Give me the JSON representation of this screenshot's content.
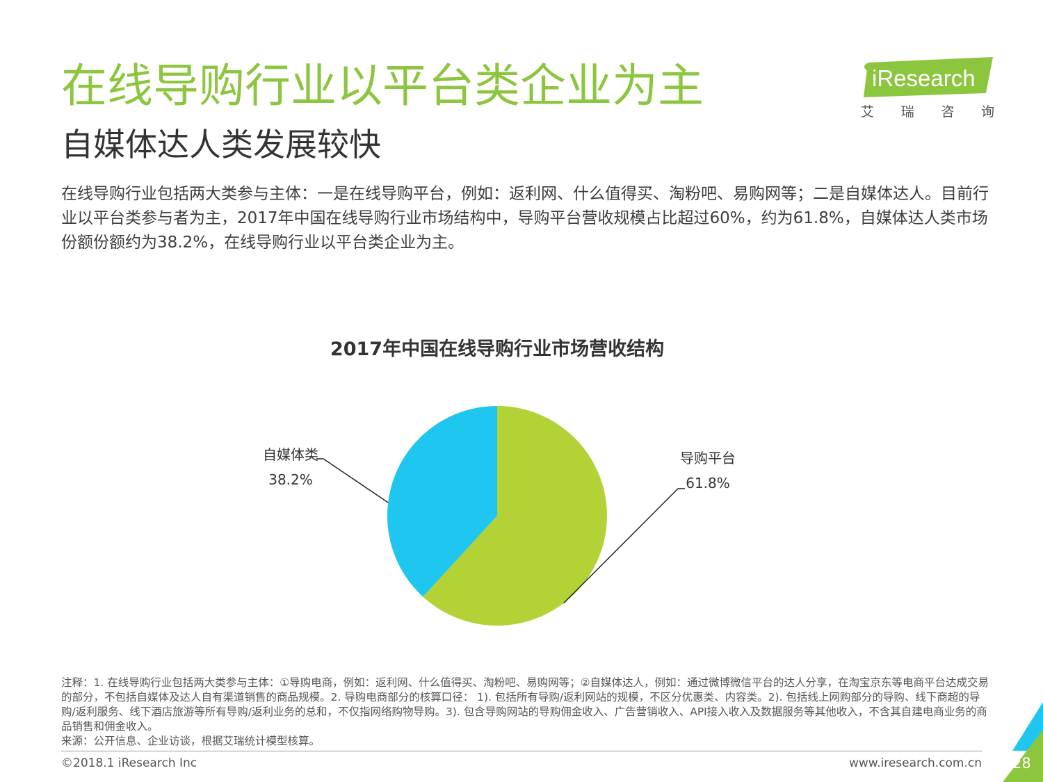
{
  "header": {
    "title": "在线导购行业以平台类企业为主",
    "subtitle": "自媒体达人类发展较快",
    "intro": "在线导购行业包括两大类参与主体：一是在线导购平台，例如：返利网、什么值得买、淘粉吧、易购网等；二是自媒体达人。目前行业以平台类参与者为主，2017年中国在线导购行业市场结构中，导购平台营收规模占比超过60%，约为61.8%，自媒体达人类市场份额份额约为38.2%，在线导购行业以平台类企业为主。"
  },
  "logo": {
    "brand": "iResearch",
    "cn_chars": [
      "艾",
      "瑞",
      "咨",
      "询"
    ]
  },
  "chart_data": {
    "type": "pie",
    "title": "2017年中国在线导购行业市场营收结构",
    "slices": [
      {
        "label": "导购平台",
        "value": 61.8,
        "value_label": "61.8%",
        "color": "#b2d235"
      },
      {
        "label": "自媒体类",
        "value": 38.2,
        "value_label": "38.2%",
        "color": "#1ec6f0"
      }
    ],
    "unit": "%"
  },
  "notes": {
    "note": "注释：1. 在线导购行业包括两大类参与主体：①导购电商，例如：返利网、什么值得买、淘粉吧、易购网等；②自媒体达人，例如：通过微博微信平台的达人分享，在淘宝京东等电商平台达成交易的部分，不包括自媒体及达人自有渠道销售的商品规模。2. 导购电商部分的核算口径： 1). 包括所有导购/返利网站的规模，不区分优惠类、内容类。2). 包括线上网购部分的导购、线下商超的导购/返利服务、线下酒店旅游等所有导购/返利业务的总和，不仅指网络购物导购。3). 包含导购网站的导购佣金收入、广告营销收入、API接入收入及数据服务等其他收入，不含其自建电商业务的商品销售和佣金收入。",
    "source": "来源：公开信息、企业访谈，根据艾瑞统计模型核算。"
  },
  "footer": {
    "copyright": "©2018.1 iResearch Inc",
    "website": "www.iresearch.com.cn",
    "page": "28"
  },
  "colors": {
    "title_green": "#8cc63f",
    "logo_green": "#8cc63f",
    "corner_green": "#8cc63f",
    "corner_blue": "#1ec6f0"
  }
}
